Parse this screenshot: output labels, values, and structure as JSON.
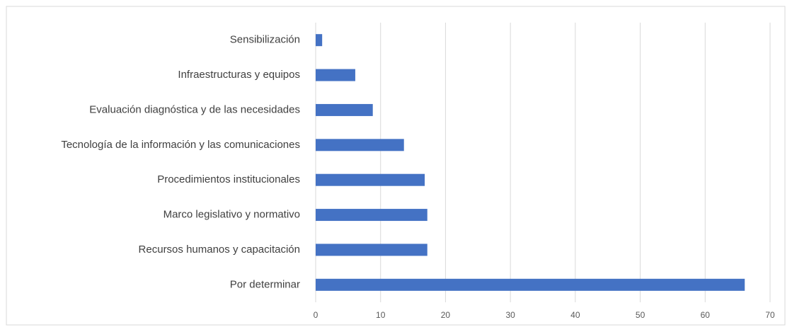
{
  "chart_data": {
    "type": "barh",
    "categories": [
      "Sensibilización",
      "Infraestructuras y equipos",
      "Evaluación diagnóstica y de las necesidades",
      "Tecnología de la información y las comunicaciones",
      "Procedimientos institucionales",
      "Marco legislativo y normativo",
      "Recursos humanos y capacitación",
      "Por determinar"
    ],
    "values": [
      1.0,
      6.1,
      8.8,
      13.6,
      16.8,
      17.2,
      17.2,
      66.1
    ],
    "color": "#4472c4",
    "xlim": [
      0,
      70
    ],
    "xticks": [
      0,
      10,
      20,
      30,
      40,
      50,
      60,
      70
    ],
    "grid": true
  }
}
